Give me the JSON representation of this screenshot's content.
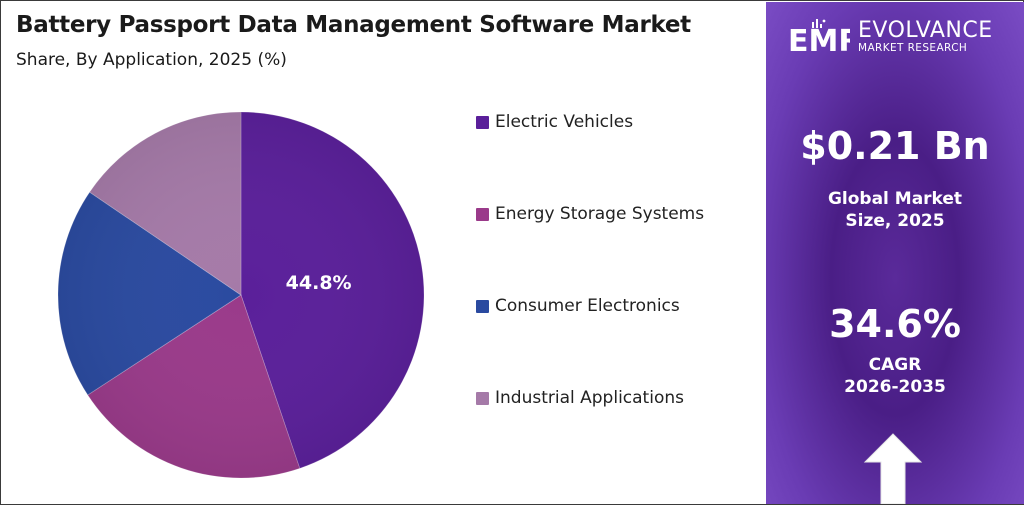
{
  "header": {
    "title": "Battery Passport Data Management Software Market",
    "subtitle": "Share, By Application, 2025 (%)"
  },
  "chart_data": {
    "type": "pie",
    "categories": [
      "Electric Vehicles",
      "Energy Storage Systems",
      "Consumer Electronics",
      "Industrial Applications"
    ],
    "values": [
      44.8,
      21.0,
      18.7,
      15.5
    ],
    "data_labels": [
      "44.8%",
      "",
      "",
      ""
    ],
    "colors": [
      "#5a1f9a",
      "#9a3a8a",
      "#2a4aa0",
      "#a57aa8"
    ],
    "legend_position": "right"
  },
  "sidebar": {
    "brand": "EVOLVANCE",
    "brand_sub": "MARKET RESEARCH",
    "logo_letters": "EMR",
    "market_size_value": "$0.21 Bn",
    "market_size_label_line1": "Global Market",
    "market_size_label_line2": "Size, 2025",
    "cagr_value": "34.6%",
    "cagr_label_line1": "CAGR",
    "cagr_label_line2": "2026-2035",
    "arrow_icon": "up-arrow-icon"
  }
}
